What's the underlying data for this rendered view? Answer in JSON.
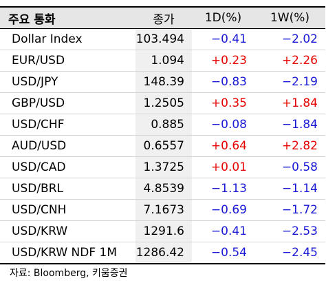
{
  "table": {
    "headers": [
      "주요 통화",
      "종가",
      "1D(%)",
      "1W(%)"
    ],
    "rows": [
      {
        "name": "Dollar Index",
        "close": "103.494",
        "d1": "−0.41",
        "d1_dir": "neg",
        "w1": "−2.02",
        "w1_dir": "neg"
      },
      {
        "name": "EUR/USD",
        "close": "1.094",
        "d1": "+0.23",
        "d1_dir": "pos",
        "w1": "+2.26",
        "w1_dir": "pos"
      },
      {
        "name": "USD/JPY",
        "close": "148.39",
        "d1": "−0.83",
        "d1_dir": "neg",
        "w1": "−2.19",
        "w1_dir": "neg"
      },
      {
        "name": "GBP/USD",
        "close": "1.2505",
        "d1": "+0.35",
        "d1_dir": "pos",
        "w1": "+1.84",
        "w1_dir": "pos"
      },
      {
        "name": "USD/CHF",
        "close": "0.885",
        "d1": "−0.08",
        "d1_dir": "neg",
        "w1": "−1.84",
        "w1_dir": "neg"
      },
      {
        "name": "AUD/USD",
        "close": "0.6557",
        "d1": "+0.64",
        "d1_dir": "pos",
        "w1": "+2.82",
        "w1_dir": "pos"
      },
      {
        "name": "USD/CAD",
        "close": "1.3725",
        "d1": "+0.01",
        "d1_dir": "pos",
        "w1": "−0.58",
        "w1_dir": "neg"
      },
      {
        "name": "USD/BRL",
        "close": "4.8539",
        "d1": "−1.13",
        "d1_dir": "neg",
        "w1": "−1.14",
        "w1_dir": "neg"
      },
      {
        "name": "USD/CNH",
        "close": "7.1673",
        "d1": "−0.69",
        "d1_dir": "neg",
        "w1": "−1.72",
        "w1_dir": "neg"
      },
      {
        "name": "USD/KRW",
        "close": "1291.6",
        "d1": "−0.41",
        "d1_dir": "neg",
        "w1": "−2.53",
        "w1_dir": "neg"
      },
      {
        "name": "USD/KRW NDF 1M",
        "close": "1286.42",
        "d1": "−0.54",
        "d1_dir": "neg",
        "w1": "−2.45",
        "w1_dir": "neg"
      }
    ]
  },
  "source": "자료: Bloomberg, 키움증권",
  "colors": {
    "positive": "#e60000",
    "negative": "#1a1ad6",
    "header_bg": "#e6e6e6",
    "close_bg": "#f0f0f0"
  }
}
